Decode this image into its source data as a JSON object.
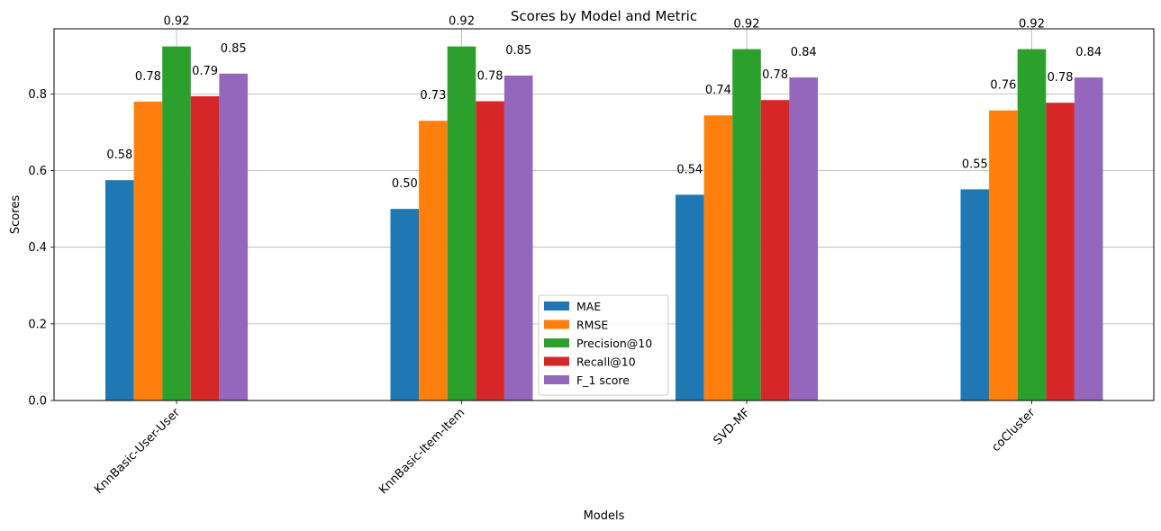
{
  "chart_data": {
    "type": "bar",
    "title": "Scores by Model and Metric",
    "xlabel": "Models",
    "ylabel": "Scores",
    "ylim": [
      0,
      0.97
    ],
    "yticks": [
      0.0,
      0.2,
      0.4,
      0.6,
      0.8
    ],
    "ytick_labels": [
      "0.0",
      "0.2",
      "0.4",
      "0.6",
      "0.8"
    ],
    "grid": true,
    "legend_position": "lower center",
    "categories": [
      "KnnBasic-User-User",
      "KnnBasic-Item-Item",
      "SVD-MF",
      "coCluster"
    ],
    "series": [
      {
        "name": "MAE",
        "color": "#1f77b4",
        "values": [
          0.575,
          0.5,
          0.537,
          0.551
        ],
        "labels": [
          "0.58",
          "0.50",
          "0.54",
          "0.55"
        ]
      },
      {
        "name": "RMSE",
        "color": "#ff7f0e",
        "values": [
          0.78,
          0.73,
          0.744,
          0.757
        ],
        "labels": [
          "0.78",
          "0.73",
          "0.74",
          "0.76"
        ]
      },
      {
        "name": "Precision@10",
        "color": "#2ca02c",
        "values": [
          0.924,
          0.924,
          0.917,
          0.917
        ],
        "labels": [
          "0.92",
          "0.92",
          "0.92",
          "0.92"
        ]
      },
      {
        "name": "Recall@10",
        "color": "#d62728",
        "values": [
          0.794,
          0.781,
          0.784,
          0.777
        ],
        "labels": [
          "0.79",
          "0.78",
          "0.78",
          "0.78"
        ]
      },
      {
        "name": "F_1 score",
        "color": "#9467bd",
        "values": [
          0.853,
          0.848,
          0.843,
          0.843
        ],
        "labels": [
          "0.85",
          "0.85",
          "0.84",
          "0.84"
        ]
      }
    ]
  }
}
